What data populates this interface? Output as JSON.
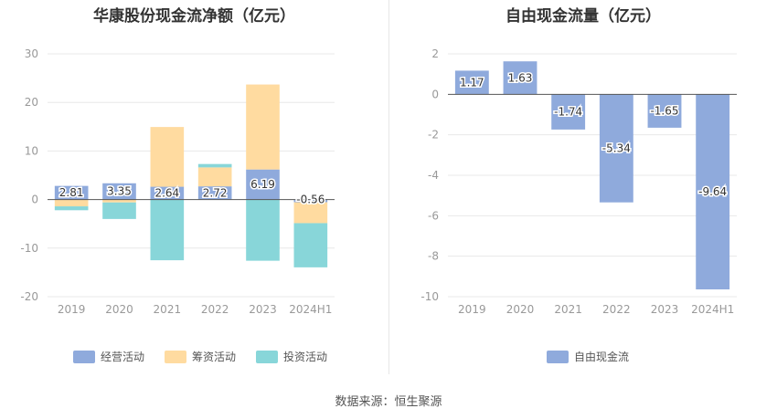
{
  "chart_data": [
    {
      "type": "bar",
      "stacked": true,
      "title": "华康股份现金流净额（亿元）",
      "categories": [
        "2019",
        "2020",
        "2021",
        "2022",
        "2023",
        "2024H1"
      ],
      "ylim": [
        -20,
        30
      ],
      "yticks": [
        30,
        20,
        10,
        0,
        -10,
        -20
      ],
      "grid": true,
      "legend_position": "bottom",
      "series": [
        {
          "name": "经营活动",
          "color": "#8faadc",
          "values": [
            2.81,
            3.35,
            2.64,
            2.72,
            6.19,
            -0.56
          ]
        },
        {
          "name": "筹资活动",
          "color": "#ffdba0",
          "values": [
            -1.4,
            -0.6,
            12.3,
            3.9,
            17.5,
            -4.3
          ]
        },
        {
          "name": "投资活动",
          "color": "#88d6d9",
          "values": [
            -0.8,
            -3.4,
            -12.5,
            0.7,
            -12.6,
            -9.1
          ]
        }
      ],
      "data_labels": [
        "2.81",
        "3.35",
        "2.64",
        "2.72",
        "6.19",
        "-0.56"
      ]
    },
    {
      "type": "bar",
      "title": "自由现金流量（亿元）",
      "categories": [
        "2019",
        "2020",
        "2021",
        "2022",
        "2023",
        "2024H1"
      ],
      "ylim": [
        -10,
        2
      ],
      "yticks": [
        2,
        0,
        -2,
        -4,
        -6,
        -8,
        -10
      ],
      "grid": true,
      "legend_position": "bottom",
      "series": [
        {
          "name": "自由现金流",
          "color": "#8faadc",
          "values": [
            1.17,
            1.63,
            -1.74,
            -5.34,
            -1.65,
            -9.64
          ]
        }
      ],
      "data_labels": [
        "1.17",
        "1.63",
        "-1.74",
        "-5.34",
        "-1.65",
        "-9.64"
      ]
    }
  ],
  "source_text": "数据来源：恒生聚源"
}
